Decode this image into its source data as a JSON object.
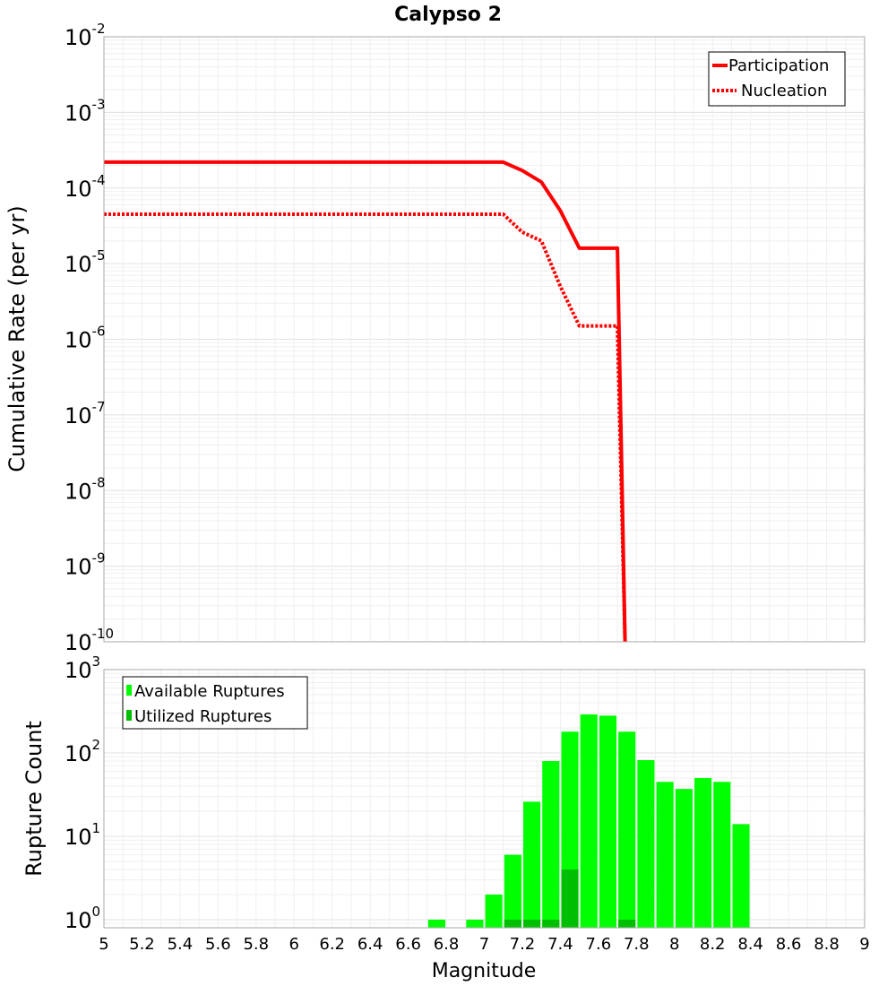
{
  "chart_data": [
    {
      "type": "line",
      "title": "Calypso 2",
      "xlabel": "",
      "ylabel": "Cumulative Rate (per yr)",
      "xlim": [
        5,
        9
      ],
      "ylim": [
        1e-10,
        0.01
      ],
      "yscale": "log",
      "grid": true,
      "legend_position": "top-right",
      "y_tick_labels": [
        {
          "base": "10",
          "exp": "-10"
        },
        {
          "base": "10",
          "exp": "-9"
        },
        {
          "base": "10",
          "exp": "-8"
        },
        {
          "base": "10",
          "exp": "-7"
        },
        {
          "base": "10",
          "exp": "-6"
        },
        {
          "base": "10",
          "exp": "-5"
        },
        {
          "base": "10",
          "exp": "-4"
        },
        {
          "base": "10",
          "exp": "-3"
        },
        {
          "base": "10",
          "exp": "-2"
        }
      ],
      "series": [
        {
          "name": "Participation",
          "style": "solid",
          "color": "#ff0000",
          "x": [
            5.0,
            7.1,
            7.2,
            7.3,
            7.4,
            7.5,
            7.6,
            7.7,
            7.74
          ],
          "y": [
            0.00022,
            0.00022,
            0.00017,
            0.00012,
            5e-05,
            1.6e-05,
            1.6e-05,
            1.6e-05,
            1e-10
          ]
        },
        {
          "name": "Nucleation",
          "style": "dotted",
          "color": "#ff0000",
          "x": [
            5.0,
            7.1,
            7.2,
            7.3,
            7.4,
            7.5,
            7.6,
            7.7,
            7.74
          ],
          "y": [
            4.5e-05,
            4.5e-05,
            2.6e-05,
            2e-05,
            5e-06,
            1.5e-06,
            1.5e-06,
            1.5e-06,
            1e-10
          ]
        }
      ]
    },
    {
      "type": "bar",
      "xlabel": "Magnitude",
      "ylabel": "Rupture Count",
      "xlim": [
        5,
        9
      ],
      "ylim": [
        0.8,
        1000
      ],
      "yscale": "log",
      "grid": true,
      "legend_position": "top-left",
      "bar_width": 0.09,
      "x_tick_labels": [
        "5",
        "5.2",
        "5.4",
        "5.6",
        "5.8",
        "6",
        "6.2",
        "6.4",
        "6.6",
        "6.8",
        "7",
        "7.2",
        "7.4",
        "7.6",
        "7.8",
        "8",
        "8.2",
        "8.4",
        "8.6",
        "8.8",
        "9"
      ],
      "y_tick_labels": [
        {
          "base": "10",
          "exp": "0"
        },
        {
          "base": "10",
          "exp": "1"
        },
        {
          "base": "10",
          "exp": "2"
        },
        {
          "base": "10",
          "exp": "3"
        }
      ],
      "series": [
        {
          "name": "Available Ruptures",
          "color": "#00ff00",
          "x": [
            6.75,
            6.95,
            7.05,
            7.15,
            7.25,
            7.35,
            7.45,
            7.55,
            7.65,
            7.75,
            7.85,
            7.95,
            8.05,
            8.15,
            8.25,
            8.35
          ],
          "values": [
            1,
            1,
            2,
            6,
            26,
            80,
            180,
            290,
            280,
            180,
            82,
            45,
            37,
            50,
            45,
            14
          ]
        },
        {
          "name": "Utilized Ruptures",
          "color": "#00bf00",
          "x": [
            7.15,
            7.25,
            7.35,
            7.45,
            7.75
          ],
          "values": [
            1,
            1,
            1,
            4,
            1
          ]
        }
      ]
    }
  ]
}
